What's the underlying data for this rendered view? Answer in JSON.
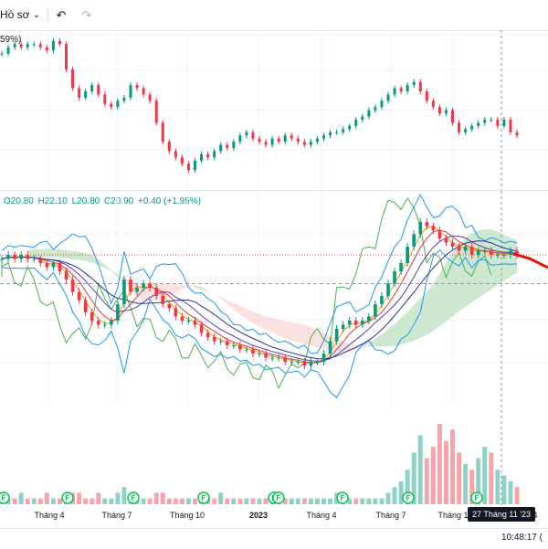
{
  "toolbar": {
    "profile_label": "Hồ sơ",
    "undo_icon": "undo-icon",
    "redo_icon": "redo-icon"
  },
  "upper_pane": {
    "legend_fragment": "59%)"
  },
  "main_legend": {
    "open": "O20.80",
    "high": "H22.10",
    "low": "L20.80",
    "close": "C20.90",
    "change": "+0.40 (+1.95%)"
  },
  "x_axis": {
    "labels": [
      "Tháng 4",
      "Tháng 7",
      "Tháng 10",
      "2023",
      "Tháng 4",
      "Tháng 7",
      "Tháng 1"
    ],
    "crosshair_label": "27 Tháng 11 '23",
    "end_fragment": "4"
  },
  "status_bar": {
    "clock": "10:48:17",
    "clock_suffix": "("
  },
  "colors": {
    "up": "#089981",
    "down": "#f23645",
    "forecast": "#e3170a",
    "cloud_bull": "#a5d6a7",
    "cloud_bear": "#f8c8c8",
    "lagging": "#4caf50",
    "bb": "#2196f3",
    "ema_purple": "#5b3ea8",
    "ema_orange": "#ff9800",
    "ema_red": "#e53935",
    "ema_navy": "#283593",
    "dividend_badge": "#00c853"
  },
  "chart_data": [
    {
      "type": "line",
      "pane": "upper comparison",
      "x": [
        0,
        1,
        2,
        3,
        4,
        5,
        6,
        7,
        8,
        9,
        10,
        11,
        12,
        13,
        14,
        15,
        16,
        17,
        18,
        19,
        20,
        21,
        22,
        23,
        24,
        25,
        26,
        27,
        28,
        29,
        30,
        31,
        32,
        33,
        34,
        35,
        36,
        37,
        38,
        39,
        40,
        41,
        42,
        43,
        44,
        45,
        46,
        47,
        48,
        49,
        50,
        51,
        52,
        53,
        54,
        55,
        56,
        57,
        58,
        59,
        60,
        61,
        62,
        63,
        64,
        65,
        66,
        67,
        68,
        69,
        70,
        71,
        72,
        73,
        74,
        75,
        76,
        77,
        78,
        79,
        80
      ],
      "series": [
        {
          "values": [
            64,
            66,
            67,
            66,
            67,
            67,
            66,
            65,
            68,
            67,
            59,
            53,
            50,
            52,
            54,
            51,
            48,
            47,
            49,
            50,
            54,
            53,
            51,
            49,
            42,
            36,
            33,
            31,
            29,
            27,
            30,
            32,
            31,
            33,
            35,
            34,
            36,
            38,
            39,
            37,
            36,
            35,
            37,
            36,
            38,
            37,
            36,
            35,
            36,
            37,
            38,
            39,
            39,
            40,
            41,
            43,
            44,
            46,
            47,
            49,
            51,
            53,
            52,
            54,
            55,
            52,
            49,
            47,
            45,
            46,
            42,
            39,
            40,
            41,
            42,
            43,
            43,
            41,
            43,
            39,
            38
          ]
        }
      ]
    },
    {
      "type": "line",
      "pane": "main price",
      "x": [
        0,
        1,
        2,
        3,
        4,
        5,
        6,
        7,
        8,
        9,
        10,
        11,
        12,
        13,
        14,
        15,
        16,
        17,
        18,
        19,
        20,
        21,
        22,
        23,
        24,
        25,
        26,
        27,
        28,
        29,
        30,
        31,
        32,
        33,
        34,
        35,
        36,
        37,
        38,
        39,
        40,
        41,
        42,
        43,
        44,
        45,
        46,
        47,
        48,
        49,
        50,
        51,
        52,
        53,
        54,
        55,
        56,
        57,
        58,
        59,
        60,
        61,
        62,
        63,
        64,
        65,
        66,
        67,
        68,
        69,
        70,
        71,
        72,
        73,
        74,
        75,
        76,
        77,
        78,
        79,
        80
      ],
      "series": [
        {
          "values": [
            39,
            40,
            39,
            40,
            39,
            39,
            38,
            37,
            38,
            36,
            34,
            31,
            29,
            26,
            24,
            23,
            23,
            24,
            28,
            34,
            31,
            32,
            33,
            32,
            30,
            28,
            27,
            25,
            24,
            24,
            23,
            21,
            20,
            19,
            19,
            18,
            18,
            17,
            17,
            16,
            16,
            15,
            15,
            15,
            14,
            14,
            14,
            13,
            14,
            14,
            16,
            19,
            22,
            23,
            24,
            23,
            24,
            25,
            28,
            30,
            33,
            36,
            38,
            42,
            45,
            48,
            47,
            46,
            44,
            43,
            42,
            41,
            42,
            40,
            41,
            41,
            40,
            40,
            40,
            41,
            40
          ]
        }
      ]
    },
    {
      "type": "bar",
      "pane": "volume",
      "x": [
        0,
        1,
        2,
        3,
        4,
        5,
        6,
        7,
        8,
        9,
        10,
        11,
        12,
        13,
        14,
        15,
        16,
        17,
        18,
        19,
        20,
        21,
        22,
        23,
        24,
        25,
        26,
        27,
        28,
        29,
        30,
        31,
        32,
        33,
        34,
        35,
        36,
        37,
        38,
        39,
        40,
        41,
        42,
        43,
        44,
        45,
        46,
        47,
        48,
        49,
        50,
        51,
        52,
        53,
        54,
        55,
        56,
        57,
        58,
        59,
        60,
        61,
        62,
        63,
        64,
        65,
        66,
        67,
        68,
        69,
        70,
        71,
        72,
        73,
        74,
        75,
        76,
        77,
        78,
        79,
        80
      ],
      "series": [
        {
          "values": [
            1,
            1,
            1,
            2,
            1,
            1,
            1,
            2,
            1,
            1,
            2,
            2,
            2,
            1,
            1,
            2,
            1,
            1,
            2,
            3,
            1,
            1,
            1,
            1,
            2,
            2,
            1,
            1,
            1,
            1,
            1,
            1,
            1,
            1,
            2,
            1,
            1,
            1,
            1,
            1,
            1,
            1,
            1,
            1,
            1,
            1,
            1,
            1,
            1,
            1,
            1,
            1,
            2,
            1,
            1,
            1,
            1,
            1,
            1,
            1,
            2,
            3,
            4,
            6,
            9,
            12,
            8,
            10,
            14,
            11,
            13,
            9,
            7,
            6,
            8,
            10,
            9,
            6,
            5,
            4,
            3
          ]
        }
      ]
    }
  ]
}
